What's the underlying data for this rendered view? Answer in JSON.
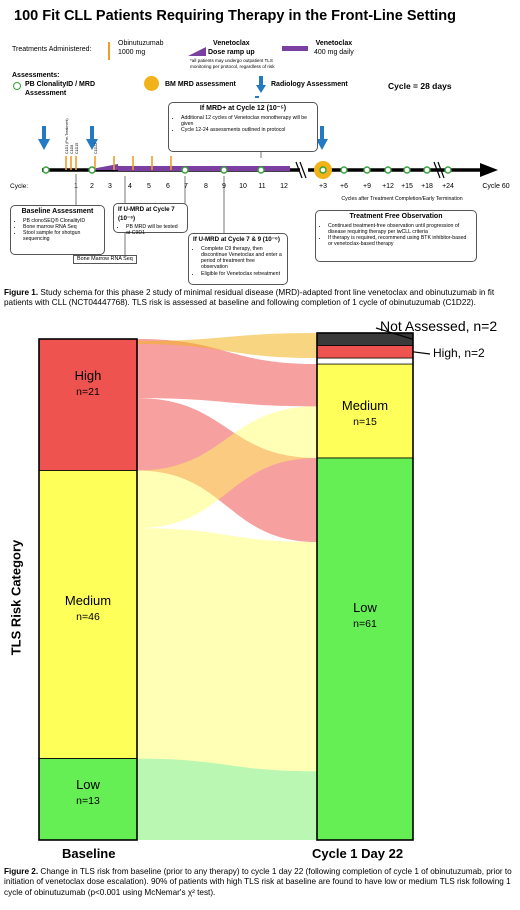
{
  "title": "100 Fit CLL Patients Requiring Therapy in the Front-Line Setting",
  "legend": {
    "treatments_label": "Treatments Administered:",
    "obinutuzumab": "Obinutuzumab",
    "obinutuzumab_dose": "1000 mg",
    "ven_ramp_title": "Venetoclax",
    "ven_ramp_sub": "Dose ramp up",
    "ven_ramp_note": "*all patients may undergo outpatient TLS monitoring per protocol, regardless of risk",
    "ven_title": "Venetoclax",
    "ven_dose": "400 mg daily",
    "assessments_label": "Assessments:",
    "pb_label": "PB ClonalityID / MRD",
    "pb_label2": "Assessment",
    "bm_label": "BM MRD assessment",
    "radiology_label": "Radiology Assessment",
    "cycle_days": "Cycle = 28 days",
    "colors": {
      "obinutuzumab": "#f39c2a",
      "venetoclax": "#7a3fa0",
      "bm": "#f2b21a",
      "pb": "#36a33a",
      "arrow": "#2379c2"
    }
  },
  "schema": {
    "cycle_prefix": "Cycle:",
    "ticks": [
      "C1D1 (Pre-Treatment)",
      "C1D8",
      "C1D15",
      "C1D22"
    ],
    "cycles_left": [
      "1",
      "2",
      "3",
      "4",
      "5",
      "6",
      "7",
      "8",
      "9",
      "10",
      "11",
      "12"
    ],
    "cycles_right": [
      "+3",
      "+6",
      "+9",
      "+12",
      "+15",
      "+18",
      "+24"
    ],
    "end_label": "Cycle 60",
    "after_label": "Cycles after Treatment Completion/Early Termination",
    "bm_rna_label": "Bone Marrow RNA Seq",
    "boxes": {
      "mrd12": {
        "title": "If MRD+ at Cycle 12 (10⁻⁵)",
        "items": [
          "Additional 12 cycles of Venetoclax monotherapy will be given",
          "Cycle 12-24 assessments outlined in protocol"
        ]
      },
      "baseline": {
        "title": "Baseline Assessment",
        "items": [
          "PB clonoSEQ® ClonalityID",
          "Bone marrow RNA Seq",
          "Stool sample for shotgun sequencing"
        ]
      },
      "umrd7": {
        "title": "If U-MRD at Cycle 7 (10⁻⁶)",
        "items": [
          "PB MRD will be tested at C9D1"
        ]
      },
      "umrd79": {
        "title": "If U-MRD at Cycle 7 & 9 (10⁻⁶)",
        "items": [
          "Complete C9 therapy, then discontinue Venetoclax and enter a period of treatment free observation",
          "Eligible for Venetoclax retreatment"
        ]
      },
      "tfo": {
        "title": "Treatment Free Observation",
        "items": [
          "Continued treatment-free observation until progression of disease requiring therapy per iwCLL criteria",
          "If therapy is required, recommend using BTK inhibitor-based or venetoclax-based therapy"
        ]
      }
    }
  },
  "figure1_caption": {
    "bold": "Figure 1.",
    "text": " Study schema for this phase 2 study of minimal residual disease (MRD)-adapted front line venetoclax and obinutuzumab in fit patients with CLL (NCT04447768). TLS risk is assessed at baseline and following completion of 1 cycle of obinutuzumab (C1D22)."
  },
  "chart_data": {
    "type": "sankey",
    "ylabel": "TLS Risk Category",
    "columns": [
      "Baseline",
      "Cycle 1 Day 22"
    ],
    "baseline": [
      {
        "name": "High",
        "n": 21,
        "label": "n=21",
        "color": "#ef5350"
      },
      {
        "name": "Medium",
        "n": 46,
        "label": "n=46",
        "color": "#ffff5a"
      },
      {
        "name": "Low",
        "n": 13,
        "label": "n=13",
        "color": "#66ee55"
      }
    ],
    "c1d22": [
      {
        "name": "Not Assessed",
        "n": 2,
        "label": "Not Assessed, n=2",
        "color": "#3a3a3a"
      },
      {
        "name": "High",
        "n": 2,
        "label": "High, n=2",
        "color": "#ef5350"
      },
      {
        "name": "Medium",
        "n": 15,
        "label": "n=15",
        "color": "#ffff5a"
      },
      {
        "name": "Low",
        "n": 61,
        "label": "n=61",
        "color": "#66ee55"
      }
    ]
  },
  "figure2_caption": {
    "bold": "Figure 2.",
    "text": " Change in TLS risk from baseline (prior to any therapy) to cycle 1 day 22 (following completion of cycle 1 of obinutuzumab, prior to initiation of venetoclax dose escalation). 90% of patients with high TLS risk at baseline are found to have low or medium TLS risk following 1 cycle of obinutuzumab (p<0.001 using McNemar's χ² test)."
  }
}
